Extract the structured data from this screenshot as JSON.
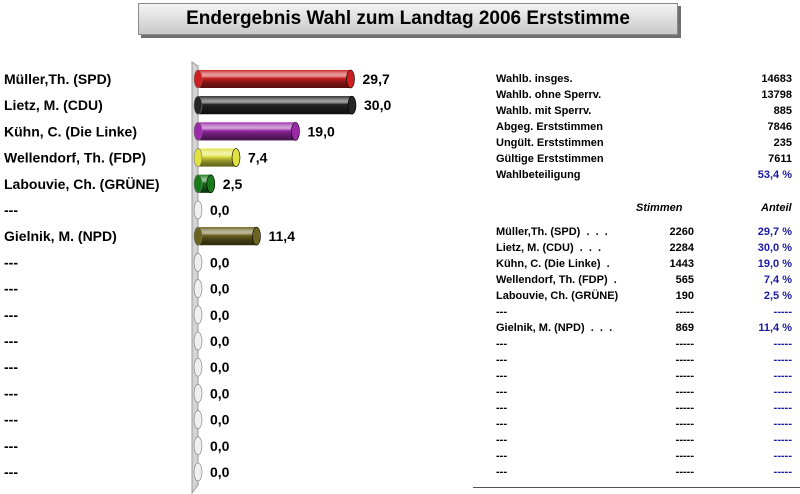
{
  "title": "Endergebnis Wahl zum Landtag 2006 Erststimme",
  "chart_data": {
    "type": "bar",
    "orientation": "horizontal",
    "categories": [
      "Müller,Th. (SPD)",
      "Lietz, M. (CDU)",
      "Kühn, C. (Die Linke)",
      "Wellendorf, Th. (FDP)",
      "Labouvie, Ch. (GRÜNE)",
      "---",
      "Gielnik, M. (NPD)",
      "---",
      "---",
      "---",
      "---",
      "---",
      "---",
      "---",
      "---",
      "---"
    ],
    "values": [
      29.7,
      30.0,
      19.0,
      7.4,
      2.5,
      0.0,
      11.4,
      0.0,
      0.0,
      0.0,
      0.0,
      0.0,
      0.0,
      0.0,
      0.0,
      0.0
    ],
    "value_labels": [
      "29,7",
      "30,0",
      "19,0",
      "7,4",
      "2,5",
      "0,0",
      "11,4",
      "0,0",
      "0,0",
      "0,0",
      "0,0",
      "0,0",
      "0,0",
      "0,0",
      "0,0",
      "0,0"
    ],
    "colors": [
      "#cc2020",
      "#262626",
      "#9a2aa8",
      "#e0e040",
      "#1a7a1a",
      "#bdbdbd",
      "#6b6320",
      "#bdbdbd",
      "#bdbdbd",
      "#bdbdbd",
      "#bdbdbd",
      "#bdbdbd",
      "#bdbdbd",
      "#bdbdbd",
      "#bdbdbd",
      "#bdbdbd"
    ],
    "xlim": [
      0,
      30.0
    ],
    "grid": false,
    "legend": "none"
  },
  "stats": [
    {
      "label": "Wahlb. insges.",
      "value": "14683"
    },
    {
      "label": "Wahlb. ohne Sperrv.",
      "value": "13798"
    },
    {
      "label": "Wahlb. mit Sperrv.",
      "value": "885"
    },
    {
      "label": "Abgeg. Erststimmen",
      "value": "7846"
    },
    {
      "label": "Ungült. Erststimmen",
      "value": "235"
    },
    {
      "label": "Gültige Erststimmen",
      "value": "7611"
    },
    {
      "label": "Wahlbeteiligung",
      "value": "53,4 %"
    }
  ],
  "results_header": {
    "votes": "Stimmen",
    "share": "Anteil"
  },
  "results": [
    {
      "name": "Müller,Th. (SPD)  .  .  .",
      "votes": "2260",
      "share": "29,7 %"
    },
    {
      "name": "Lietz, M. (CDU)  .  .  .",
      "votes": "2284",
      "share": "30,0 %"
    },
    {
      "name": "Kühn, C. (Die Linke)  .",
      "votes": "1443",
      "share": "19,0 %"
    },
    {
      "name": "Wellendorf, Th. (FDP)  .",
      "votes": "565",
      "share": "7,4 %"
    },
    {
      "name": "Labouvie, Ch. (GRÜNE)",
      "votes": "190",
      "share": "2,5 %"
    },
    {
      "name": "---",
      "votes": "-----",
      "share": "-----"
    },
    {
      "name": "Gielnik, M. (NPD)  .  .  .",
      "votes": "869",
      "share": "11,4 %"
    },
    {
      "name": "---",
      "votes": "-----",
      "share": "-----"
    },
    {
      "name": "---",
      "votes": "-----",
      "share": "-----"
    },
    {
      "name": "---",
      "votes": "-----",
      "share": "-----"
    },
    {
      "name": "---",
      "votes": "-----",
      "share": "-----"
    },
    {
      "name": "---",
      "votes": "-----",
      "share": "-----"
    },
    {
      "name": "---",
      "votes": "-----",
      "share": "-----"
    },
    {
      "name": "---",
      "votes": "-----",
      "share": "-----"
    },
    {
      "name": "---",
      "votes": "-----",
      "share": "-----"
    },
    {
      "name": "---",
      "votes": "-----",
      "share": "-----"
    }
  ]
}
